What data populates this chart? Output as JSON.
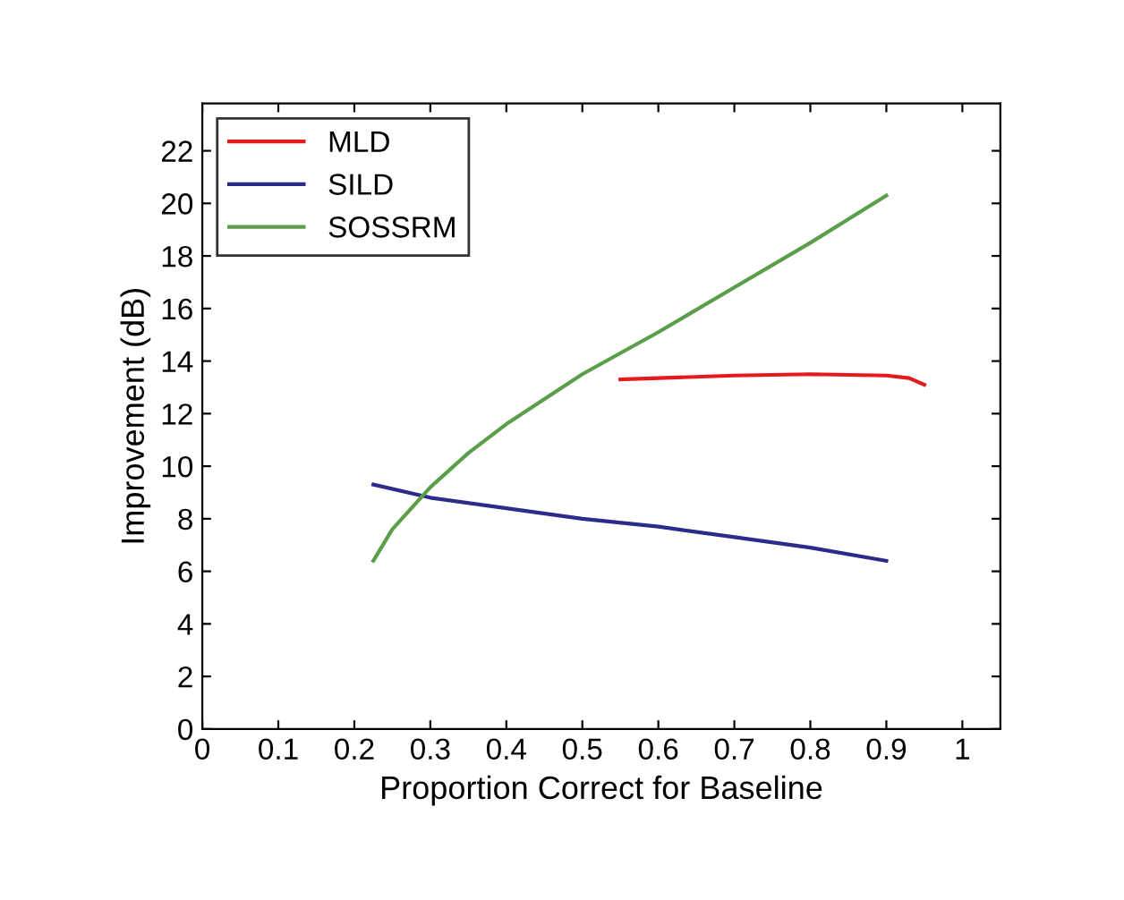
{
  "chart_data": {
    "type": "line",
    "xlabel": "Proportion Correct for Baseline",
    "ylabel": "Improvement (dB)",
    "xlim": [
      0,
      1.05
    ],
    "ylim": [
      0,
      23.8
    ],
    "xticks": [
      0,
      0.1,
      0.2,
      0.3,
      0.4,
      0.5,
      0.6,
      0.7,
      0.8,
      0.9,
      1
    ],
    "yticks": [
      0,
      2,
      4,
      6,
      8,
      10,
      12,
      14,
      16,
      18,
      20,
      22
    ],
    "grid": false,
    "legend": "top left",
    "series": [
      {
        "name": "MLD",
        "color": "#e41a1c",
        "x": [
          0.55,
          0.6,
          0.7,
          0.8,
          0.9,
          0.93,
          0.95
        ],
        "values": [
          13.3,
          13.35,
          13.45,
          13.5,
          13.45,
          13.35,
          13.1
        ]
      },
      {
        "name": "SILD",
        "color": "#2b2b8c",
        "x": [
          0.225,
          0.3,
          0.4,
          0.5,
          0.6,
          0.7,
          0.8,
          0.9
        ],
        "values": [
          9.3,
          8.8,
          8.4,
          8.0,
          7.7,
          7.3,
          6.9,
          6.4
        ]
      },
      {
        "name": "SOSSRM",
        "color": "#5a9e4a",
        "x": [
          0.225,
          0.25,
          0.3,
          0.35,
          0.4,
          0.5,
          0.6,
          0.7,
          0.8,
          0.9
        ],
        "values": [
          6.4,
          7.6,
          9.2,
          10.5,
          11.6,
          13.5,
          15.1,
          16.8,
          18.5,
          20.3
        ]
      }
    ]
  }
}
